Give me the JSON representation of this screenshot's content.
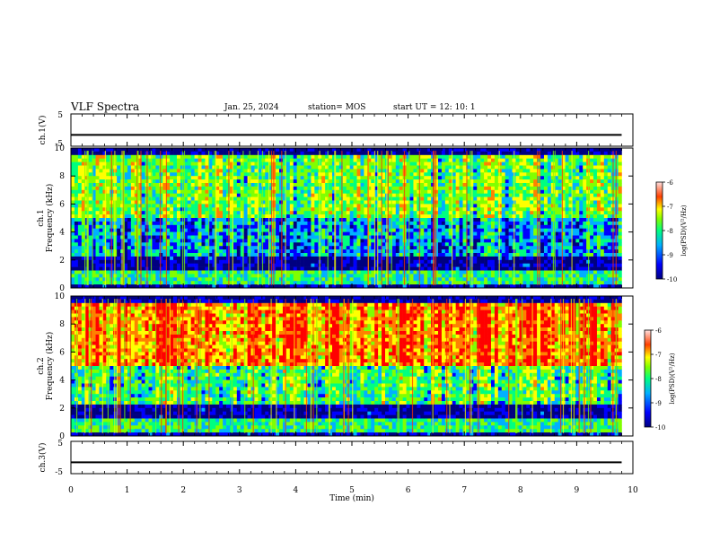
{
  "header": {
    "title": "VLF Spectra",
    "date": "Jan. 25, 2024",
    "station": "station= MOS",
    "start_ut": "start  UT =   12: 10: 1"
  },
  "chart_data": [
    {
      "type": "line",
      "panel": "ch1-waveform",
      "ylabel": "ch.1(V)",
      "ylim": [
        -5,
        5
      ],
      "yticks": [
        "5",
        "-5"
      ],
      "x": [
        0,
        9.8
      ],
      "values": [
        -1.5,
        -1.5
      ]
    },
    {
      "type": "heatmap",
      "panel": "ch1-spectrogram",
      "ylabel_top": "ch.1",
      "ylabel": "Frequency (kHz)",
      "ylim": [
        0,
        10
      ],
      "yticks": [
        "0",
        "2",
        "4",
        "6",
        "8",
        "10"
      ],
      "xlim": [
        0,
        10
      ],
      "data_end_min": 9.8,
      "colorbar": {
        "label": "log(PSD)(V²/Hz)",
        "range": [
          -10,
          -6
        ],
        "ticks": [
          "-6",
          "-7",
          "-8",
          "-9",
          "-10"
        ]
      }
    },
    {
      "type": "heatmap",
      "panel": "ch2-spectrogram",
      "ylabel_top": "ch.2",
      "ylabel": "Frequency (kHz)",
      "ylim": [
        0,
        10
      ],
      "yticks": [
        "0",
        "2",
        "4",
        "6",
        "8",
        "10"
      ],
      "xlim": [
        0,
        10
      ],
      "data_end_min": 9.8,
      "colorbar": {
        "label": "log(PSD)(V²/Hz)",
        "range": [
          -10,
          -6
        ],
        "ticks": [
          "-6",
          "-7",
          "-8",
          "-9",
          "-10"
        ]
      }
    },
    {
      "type": "line",
      "panel": "ch3-waveform",
      "ylabel": "ch.3(V)",
      "ylim": [
        -5,
        5
      ],
      "yticks": [
        "5",
        "-5"
      ],
      "x": [
        0,
        9.8
      ],
      "values": [
        -1.5,
        -1.5
      ]
    }
  ],
  "xaxis": {
    "label": "Time  (min)",
    "ticks": [
      "0",
      "1",
      "2",
      "3",
      "4",
      "5",
      "6",
      "7",
      "8",
      "9",
      "10"
    ]
  },
  "colors": {
    "colormap": [
      "#000080",
      "#0000ff",
      "#00b0ff",
      "#00ff80",
      "#80ff00",
      "#ffff00",
      "#ff8000",
      "#ff0000"
    ],
    "background": "#ffffff",
    "axes": "#000000"
  }
}
